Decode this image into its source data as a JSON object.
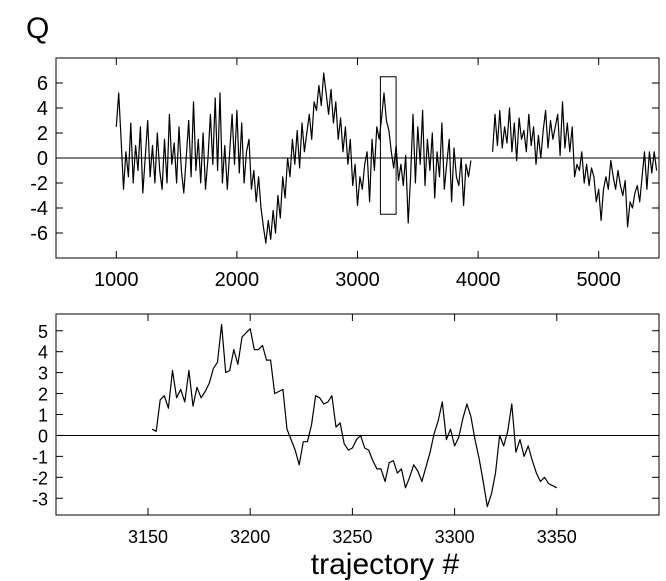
{
  "figure": {
    "panel_label": "Q",
    "xlabel": "trajectory #"
  },
  "chart_data": [
    {
      "type": "line",
      "title": "",
      "xlabel": "",
      "ylabel": "",
      "xlim": [
        500,
        5500
      ],
      "ylim": [
        -8,
        8
      ],
      "x_ticks": [
        1000,
        2000,
        3000,
        4000,
        5000
      ],
      "y_ticks": [
        -6,
        -4,
        -2,
        0,
        2,
        4,
        6
      ],
      "zero_line": true,
      "grid": false,
      "highlight_box": {
        "x": [
          3190,
          3320
        ],
        "y": [
          -4.5,
          6.5
        ]
      },
      "series": [
        {
          "x": [
            1000,
            1020,
            1040,
            1060,
            1080,
            1100,
            1120,
            1140,
            1160,
            1180,
            1200,
            1220,
            1240,
            1260,
            1280,
            1300,
            1320,
            1340,
            1360,
            1380,
            1400,
            1420,
            1440,
            1460,
            1480,
            1500,
            1520,
            1540,
            1560,
            1580,
            1600,
            1620,
            1640,
            1660,
            1680,
            1700,
            1720,
            1740,
            1760,
            1780,
            1800,
            1820,
            1840,
            1860,
            1880,
            1900,
            1920,
            1940,
            1960,
            1980,
            2000,
            2020,
            2040,
            2060,
            2080,
            2100,
            2120,
            2140,
            2160,
            2180,
            2200,
            2220,
            2240,
            2260,
            2280,
            2300,
            2320,
            2340,
            2360,
            2380,
            2400,
            2420,
            2440,
            2460,
            2480,
            2500,
            2520,
            2540,
            2560,
            2580,
            2600,
            2620,
            2640,
            2660,
            2680,
            2700,
            2720,
            2740,
            2760,
            2780,
            2800,
            2820,
            2840,
            2860,
            2880,
            2900,
            2920,
            2940,
            2960,
            2980,
            3000,
            3020,
            3040,
            3060,
            3080,
            3100,
            3120,
            3140,
            3160,
            3180,
            3200,
            3220,
            3240,
            3260,
            3280,
            3300,
            3320,
            3340,
            3360,
            3380,
            3400,
            3420,
            3440,
            3460,
            3480,
            3500,
            3520,
            3540,
            3560,
            3580,
            3600,
            3620,
            3640,
            3660,
            3680,
            3700,
            3720,
            3740,
            3760,
            3780,
            3800,
            3820,
            3840,
            3860,
            3880,
            3900,
            3920,
            3940
          ],
          "y": [
            2.5,
            5.2,
            1.5,
            -2.5,
            0.5,
            -1.5,
            2.8,
            -2,
            1,
            -1,
            2.5,
            -2.8,
            0,
            3,
            -1.5,
            1,
            -2,
            2,
            -1,
            -2.5,
            1.5,
            -2,
            3.5,
            -0.5,
            1.2,
            -2,
            2.5,
            -1,
            -2.8,
            0,
            3,
            -1.5,
            4.5,
            -1,
            1.5,
            -2,
            2,
            -2.5,
            0,
            3.5,
            -0.5,
            4.8,
            -1,
            5.2,
            -2,
            1,
            -2.5,
            0.5,
            3.5,
            -0.5,
            3.8,
            -1.2,
            2.8,
            -2,
            0.5,
            1.5,
            -2.5,
            -1,
            -3.5,
            -1.5,
            -4,
            -5.5,
            -6.8,
            -5,
            -6.5,
            -4.2,
            -6,
            -3,
            -4.8,
            -1.5,
            -3.2,
            0,
            -1.5,
            1.5,
            -0.5,
            2.2,
            -0.8,
            2.8,
            0.5,
            2,
            3.5,
            1.5,
            4.5,
            3.8,
            5.8,
            4.2,
            6.8,
            5.2,
            3.5,
            5.5,
            2.8,
            4.5,
            1.5,
            3.2,
            0.5,
            2.5,
            -0.5,
            1.5,
            -2.2,
            -0.5,
            -3.8,
            -1.5,
            -2.5,
            -0.5,
            0.5,
            -3.5,
            1.5,
            -1,
            2.5,
            1.5,
            3.2,
            5.2,
            3,
            2.2,
            0.5,
            -0.8,
            1,
            -1.8,
            -0.5,
            -2.2,
            0.2,
            -5.2,
            -1.5,
            3.5,
            -2,
            2.5,
            -0.5,
            3.8,
            -2.2,
            1.5,
            -1,
            2,
            -3.2,
            0.5,
            -1.5,
            2.8,
            -2.5,
            -0.5,
            1.5,
            -3.5,
            0.8,
            -1.5,
            -2.2,
            0,
            -3.8,
            -0.5,
            -1.5,
            -0.2
          ]
        },
        {
          "x": [
            4120,
            4140,
            4160,
            4180,
            4200,
            4220,
            4240,
            4260,
            4280,
            4300,
            4320,
            4340,
            4360,
            4380,
            4400,
            4420,
            4440,
            4460,
            4480,
            4500,
            4520,
            4540,
            4560,
            4580,
            4600,
            4620,
            4640,
            4660,
            4680,
            4700,
            4720,
            4740,
            4760,
            4780,
            4800,
            4820,
            4840,
            4860,
            4880,
            4900,
            4920,
            4940,
            4960,
            4980,
            5000,
            5020,
            5040,
            5060,
            5080,
            5100,
            5120,
            5140,
            5160,
            5180,
            5200,
            5220,
            5240,
            5260,
            5280,
            5300,
            5320,
            5340,
            5360,
            5380,
            5400,
            5420,
            5440,
            5460,
            5480
          ],
          "y": [
            0.5,
            3.5,
            1,
            3.8,
            0.8,
            2.5,
            1.2,
            4,
            0.5,
            2.8,
            -0.2,
            3.2,
            1.5,
            2.2,
            0.5,
            3.5,
            1,
            2.5,
            -0.5,
            1.8,
            0,
            2.2,
            3.8,
            0.8,
            3,
            1.5,
            2.5,
            3.5,
            0.2,
            4.5,
            0.8,
            2.8,
            0.5,
            2.5,
            -1.5,
            -0.5,
            -1,
            0.5,
            -2,
            -0.5,
            -2.2,
            -0.8,
            -1.5,
            -3.5,
            -2.5,
            -5,
            -2.5,
            -1.5,
            -2.5,
            -0.2,
            -1.5,
            -2.5,
            -1,
            -2.2,
            -3,
            -1.8,
            -5.5,
            -3.5,
            -4,
            -2.8,
            -2.2,
            -3.5,
            -1.5,
            0.5,
            -2.5,
            0.5,
            -1.2,
            0.5,
            -1
          ]
        }
      ]
    },
    {
      "type": "line",
      "title": "",
      "xlabel": "trajectory #",
      "ylabel": "",
      "xlim": [
        3105,
        3400
      ],
      "ylim": [
        -3.8,
        5.8
      ],
      "x_ticks": [
        3150,
        3200,
        3250,
        3300,
        3350
      ],
      "y_ticks": [
        -3,
        -2,
        -1,
        0,
        1,
        2,
        3,
        4,
        5
      ],
      "zero_line": true,
      "grid": false,
      "series": [
        {
          "x": [
            3152,
            3154,
            3156,
            3158,
            3160,
            3162,
            3164,
            3166,
            3168,
            3170,
            3172,
            3174,
            3176,
            3178,
            3180,
            3182,
            3184,
            3186,
            3188,
            3190,
            3192,
            3194,
            3196,
            3198,
            3200,
            3202,
            3204,
            3206,
            3208,
            3210,
            3212,
            3214,
            3216,
            3218,
            3220,
            3222,
            3224,
            3226,
            3228,
            3230,
            3232,
            3234,
            3236,
            3238,
            3240,
            3242,
            3244,
            3246,
            3248,
            3250,
            3252,
            3254,
            3256,
            3258,
            3260,
            3262,
            3264,
            3266,
            3268,
            3270,
            3272,
            3274,
            3276,
            3278,
            3280,
            3282,
            3284,
            3286,
            3288,
            3290,
            3292,
            3294,
            3296,
            3298,
            3300,
            3302,
            3304,
            3306,
            3308,
            3310,
            3312,
            3314,
            3316,
            3318,
            3320,
            3322,
            3324,
            3326,
            3328,
            3330,
            3332,
            3334,
            3336,
            3338,
            3340,
            3342,
            3344,
            3346,
            3348,
            3350
          ],
          "y": [
            0.3,
            0.2,
            1.7,
            1.9,
            1.3,
            3.1,
            1.8,
            2.2,
            1.6,
            3.1,
            1.4,
            2.3,
            1.8,
            2.1,
            2.5,
            3.2,
            3.5,
            5.3,
            3,
            3.1,
            4.1,
            3.4,
            4.7,
            4.9,
            5.1,
            4.1,
            4.1,
            4.3,
            3.6,
            3.6,
            2,
            2.1,
            2.2,
            0.3,
            -0.2,
            -0.7,
            -1.4,
            -0.3,
            -0.3,
            0.5,
            1.9,
            1.8,
            1.5,
            1.6,
            1.9,
            0.4,
            0.6,
            -0.4,
            -0.7,
            -0.6,
            -0.2,
            0,
            -0.6,
            -0.7,
            -1.2,
            -1.6,
            -1.6,
            -2.2,
            -1.3,
            -1.2,
            -1.8,
            -1.6,
            -2.5,
            -2,
            -1.4,
            -1.7,
            -2.2,
            -1.5,
            -0.8,
            0.1,
            0.7,
            1.6,
            -0.2,
            0.3,
            -0.5,
            -0.1,
            0.8,
            1.5,
            0.9,
            -0.2,
            -1.1,
            -2.2,
            -3.4,
            -2.8,
            -1.8,
            0,
            -0.5,
            0.2,
            1.5,
            -0.8,
            -0.2,
            -1,
            -0.5,
            -1.2,
            -1.8,
            -2.2,
            -2,
            -2.3,
            -2.4,
            -2.5
          ]
        }
      ]
    }
  ]
}
